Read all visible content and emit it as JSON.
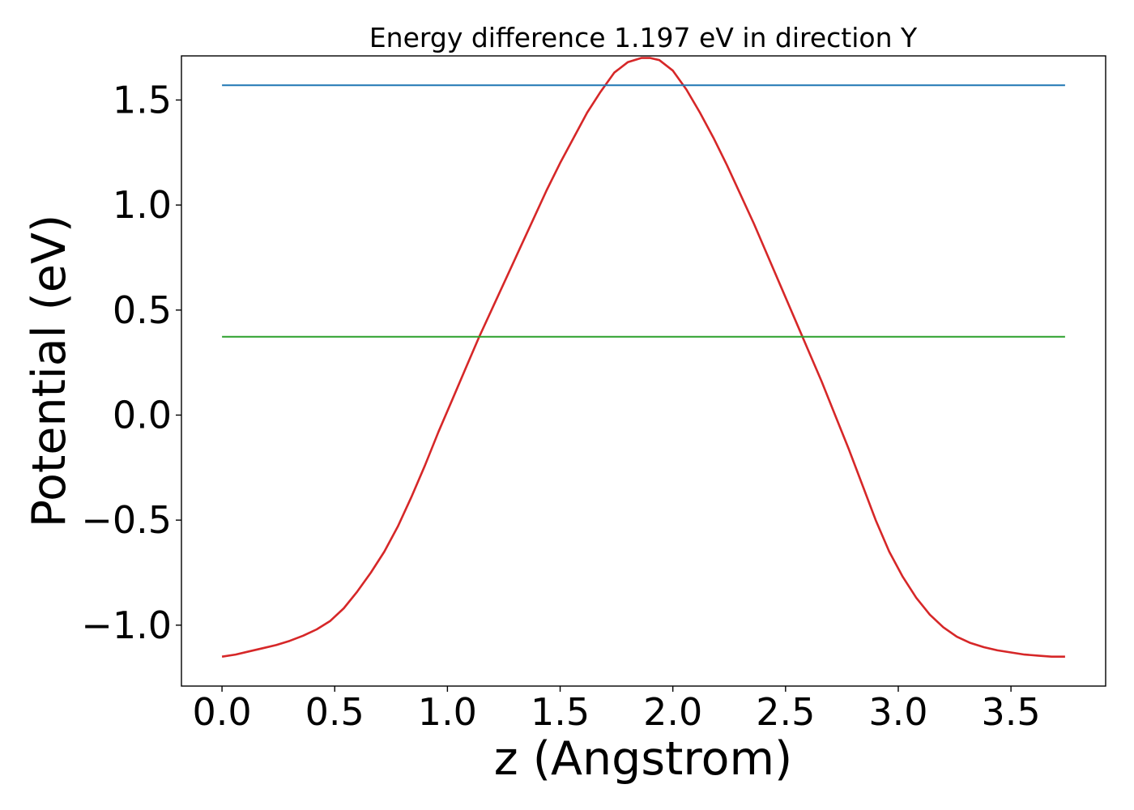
{
  "chart_data": {
    "type": "line",
    "title": "Energy difference 1.197 eV in direction Y",
    "xlabel": "z (Angstrom)",
    "ylabel": "Potential (eV)",
    "xlim": [
      -0.18,
      3.92
    ],
    "ylim": [
      -1.29,
      1.71
    ],
    "x_ticks": [
      0.0,
      0.5,
      1.0,
      1.5,
      2.0,
      2.5,
      3.0,
      3.5
    ],
    "x_tick_labels": [
      "0.0",
      "0.5",
      "1.0",
      "1.5",
      "2.0",
      "2.5",
      "3.0",
      "3.5"
    ],
    "y_ticks": [
      -1.0,
      -0.5,
      0.0,
      0.5,
      1.0,
      1.5
    ],
    "y_tick_labels": [
      "−1.0",
      "−0.5",
      "0.0",
      "0.5",
      "1.0",
      "1.5"
    ],
    "grid": false,
    "legend": "none",
    "colors": {
      "potential": "#d62728",
      "maximum": "#1f77b4",
      "average": "#2ca02c"
    },
    "series": [
      {
        "color": "#d62728",
        "x": [
          0.0,
          0.06,
          0.12,
          0.18,
          0.24,
          0.3,
          0.36,
          0.42,
          0.48,
          0.54,
          0.6,
          0.66,
          0.72,
          0.78,
          0.84,
          0.9,
          0.96,
          1.02,
          1.08,
          1.14,
          1.2,
          1.26,
          1.32,
          1.38,
          1.44,
          1.5,
          1.56,
          1.62,
          1.68,
          1.74,
          1.8,
          1.86,
          1.9,
          1.94,
          2.0,
          2.06,
          2.12,
          2.18,
          2.24,
          2.3,
          2.36,
          2.42,
          2.48,
          2.54,
          2.6,
          2.66,
          2.72,
          2.78,
          2.84,
          2.9,
          2.96,
          3.02,
          3.08,
          3.14,
          3.2,
          3.26,
          3.32,
          3.38,
          3.44,
          3.5,
          3.56,
          3.62,
          3.68,
          3.74
        ],
        "y": [
          -1.15,
          -1.14,
          -1.125,
          -1.11,
          -1.095,
          -1.075,
          -1.05,
          -1.02,
          -0.98,
          -0.92,
          -0.84,
          -0.75,
          -0.65,
          -0.53,
          -0.39,
          -0.24,
          -0.08,
          0.07,
          0.22,
          0.37,
          0.51,
          0.65,
          0.79,
          0.93,
          1.07,
          1.2,
          1.32,
          1.44,
          1.54,
          1.63,
          1.68,
          1.7,
          1.7,
          1.69,
          1.64,
          1.55,
          1.44,
          1.32,
          1.19,
          1.05,
          0.91,
          0.76,
          0.61,
          0.46,
          0.31,
          0.16,
          0.0,
          -0.16,
          -0.33,
          -0.5,
          -0.65,
          -0.77,
          -0.87,
          -0.95,
          -1.01,
          -1.055,
          -1.085,
          -1.105,
          -1.12,
          -1.13,
          -1.14,
          -1.145,
          -1.15,
          -1.15
        ]
      },
      {
        "color": "#1f77b4",
        "x": [
          0.0,
          3.74
        ],
        "y": [
          1.57,
          1.57
        ]
      },
      {
        "color": "#2ca02c",
        "x": [
          0.0,
          3.74
        ],
        "y": [
          0.373,
          0.373
        ]
      }
    ]
  }
}
